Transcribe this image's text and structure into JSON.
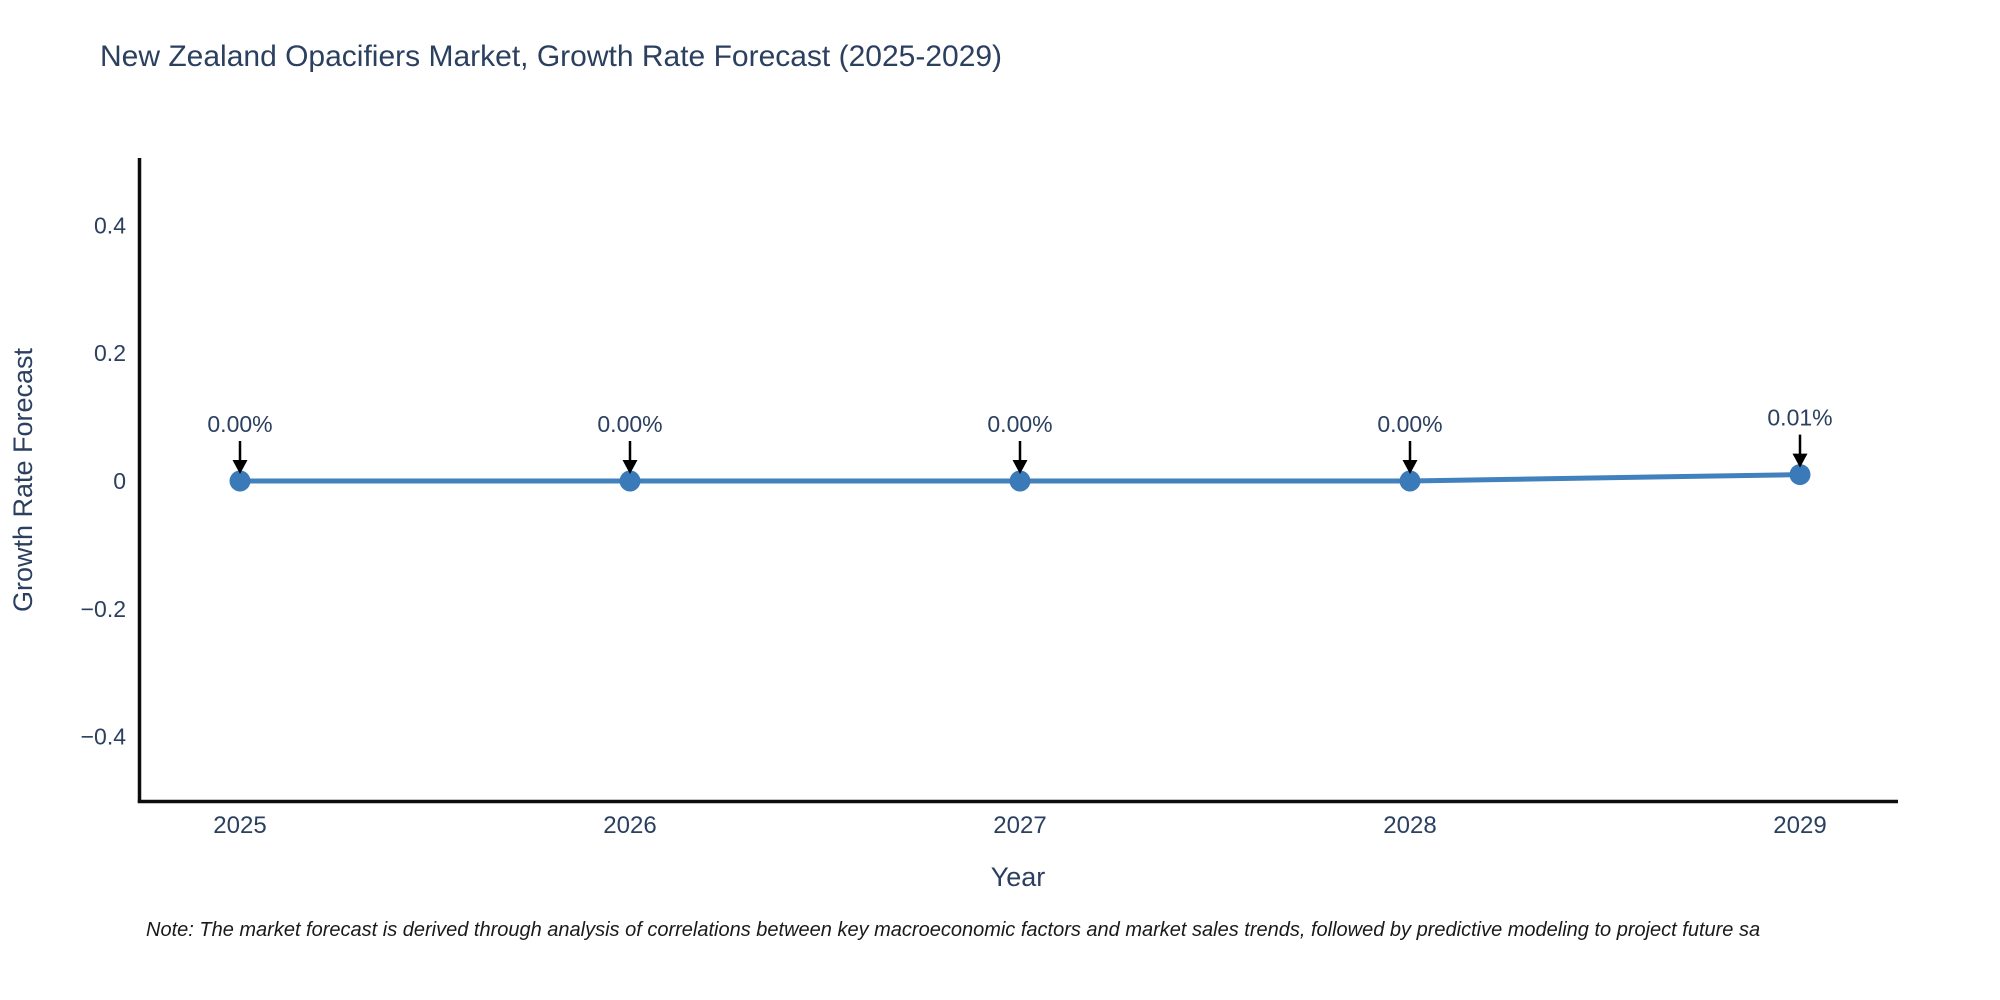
{
  "page": {
    "title": "New Zealand Opacifiers Market, Growth Rate Forecast (2025-2029)",
    "note": "Note: The market forecast is derived through analysis of correlations between key macroeconomic factors and market sales trends, followed by predictive modeling to project future sa"
  },
  "chart_data": {
    "type": "line",
    "title": "New Zealand Opacifiers Market, Growth Rate Forecast (2025-2029)",
    "xlabel": "Year",
    "ylabel": "Growth Rate Forecast",
    "categories": [
      2025,
      2026,
      2027,
      2028,
      2029
    ],
    "series": [
      {
        "name": "Growth Rate Forecast",
        "units": "%",
        "values": [
          0.0,
          0.0,
          0.0,
          0.0,
          0.01
        ]
      }
    ],
    "point_labels": [
      "0.00%",
      "0.00%",
      "0.00%",
      "0.00%",
      "0.01%"
    ],
    "yticks": [
      0.4,
      0.2,
      0,
      -0.2,
      -0.4
    ],
    "ytick_labels": [
      "0.4",
      "0.2",
      "0",
      "−0.2",
      "−0.4"
    ],
    "ylim": [
      -0.505,
      0.505
    ],
    "grid": false,
    "legend": "none",
    "annotation_style": "down-arrow-to-point",
    "colors": {
      "line": "#4181bd",
      "marker": "#3b7ab8",
      "axis": "#0d0d0d",
      "text": "#2b3f5f",
      "arrow": "#000000",
      "note_text": "#1a1a1a"
    }
  }
}
